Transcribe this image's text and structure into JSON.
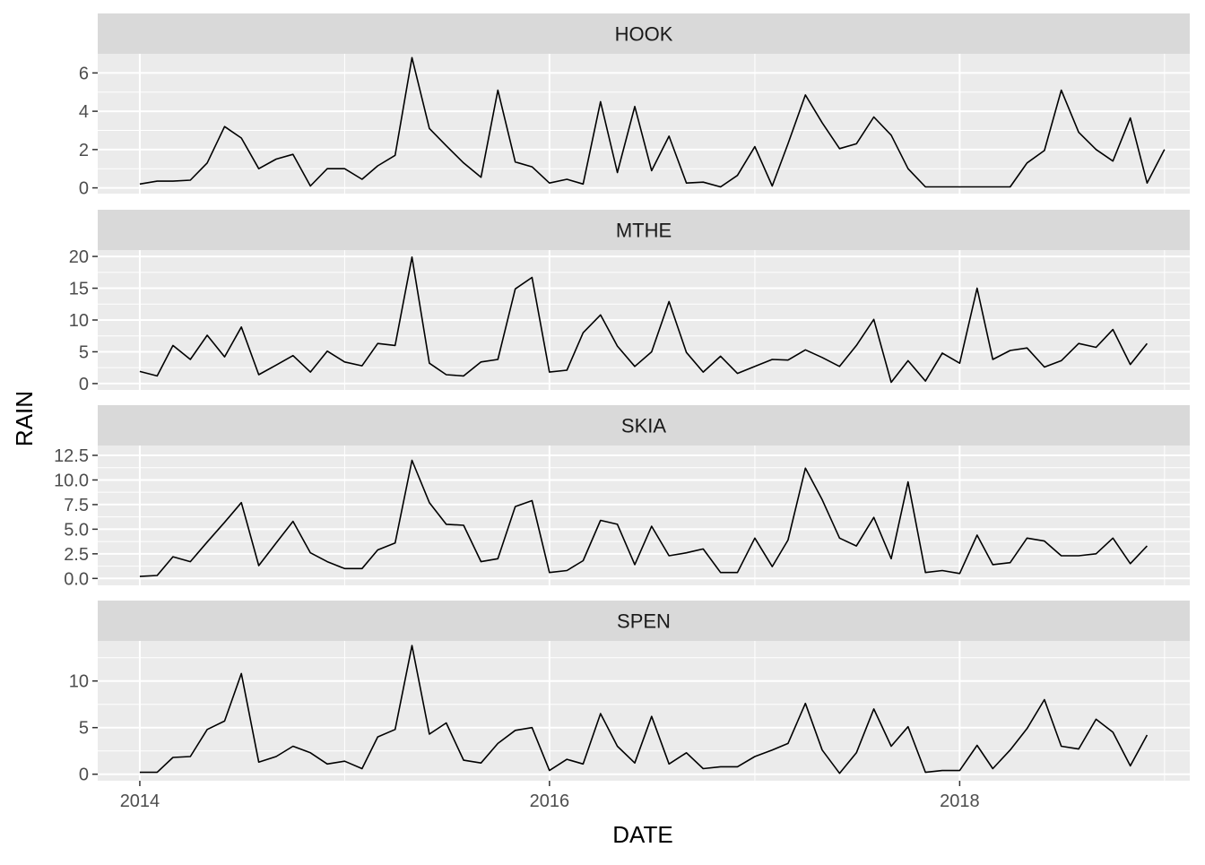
{
  "chart_data": {
    "type": "line",
    "xlabel": "DATE",
    "ylabel": "RAIN",
    "x_ticks": [
      "2014",
      "2016",
      "2018"
    ],
    "xlim": [
      "2013-10-18",
      "2019-02-15"
    ],
    "line_color": "#000000",
    "panel_background": "#ebebeb",
    "strip_background": "#d9d9d9",
    "grid": true,
    "facets": [
      {
        "strip": "HOOK",
        "ylim": [
          -0.3,
          7.0
        ],
        "y_ticks": [
          0,
          2,
          4,
          6
        ],
        "y_tick_labels": [
          "0",
          "2",
          "4",
          "6"
        ],
        "values": [
          0.2,
          0.35,
          0.35,
          0.4,
          1.3,
          3.2,
          2.6,
          1.0,
          1.5,
          1.75,
          0.1,
          1.0,
          1.0,
          0.45,
          1.15,
          1.7,
          6.8,
          3.1,
          2.2,
          1.3,
          0.55,
          5.1,
          1.35,
          1.1,
          0.25,
          0.45,
          0.2,
          4.5,
          0.8,
          4.25,
          0.9,
          2.7,
          0.25,
          0.3,
          0.05,
          0.65,
          2.15,
          0.1,
          2.3,
          4.85,
          3.4,
          2.05,
          2.3,
          3.7,
          2.75,
          1.0,
          0.05,
          0.05,
          0.05,
          0.05,
          0.05,
          0.05,
          1.3,
          1.95,
          5.1,
          2.9,
          2.0,
          1.4,
          3.65,
          0.25,
          2.0
        ]
      },
      {
        "strip": "MTHE",
        "ylim": [
          -1.0,
          21.0
        ],
        "y_ticks": [
          0,
          5,
          10,
          15,
          20
        ],
        "y_tick_labels": [
          "0",
          "5",
          "10",
          "15",
          "20"
        ],
        "values": [
          1.9,
          1.2,
          6.0,
          3.8,
          7.6,
          4.2,
          8.9,
          1.4,
          2.9,
          4.4,
          1.8,
          5.1,
          3.4,
          2.8,
          6.3,
          6.0,
          19.9,
          3.2,
          1.4,
          1.2,
          3.4,
          3.8,
          14.9,
          16.7,
          1.8,
          2.1,
          8.0,
          10.8,
          5.9,
          2.7,
          5.0,
          12.9,
          4.9,
          1.8,
          4.3,
          1.6,
          2.7,
          3.8,
          3.7,
          5.3,
          4.1,
          2.7,
          6.0,
          10.1,
          0.2,
          3.6,
          0.4,
          4.8,
          3.2,
          15.0,
          3.8,
          5.2,
          5.6,
          2.6,
          3.6,
          6.3,
          5.7,
          8.5,
          3.0,
          6.3
        ]
      },
      {
        "strip": "SKIA",
        "ylim": [
          -0.7,
          13.5
        ],
        "y_ticks": [
          0,
          2.5,
          5,
          7.5,
          10,
          12.5
        ],
        "y_tick_labels": [
          "0.0",
          "2.5",
          "5.0",
          "7.5",
          "10.0",
          "12.5"
        ],
        "values": [
          0.2,
          0.3,
          2.2,
          1.7,
          3.7,
          5.7,
          7.7,
          1.3,
          3.6,
          5.8,
          2.6,
          1.7,
          1.0,
          1.0,
          2.9,
          3.6,
          12.0,
          7.7,
          5.5,
          5.4,
          1.7,
          2.0,
          7.3,
          7.9,
          0.6,
          0.8,
          1.8,
          5.9,
          5.5,
          1.4,
          5.3,
          2.3,
          2.6,
          3.0,
          0.6,
          0.6,
          4.1,
          1.2,
          3.9,
          11.2,
          8.0,
          4.1,
          3.3,
          6.2,
          2.0,
          9.8,
          0.6,
          0.8,
          0.5,
          4.4,
          1.4,
          1.6,
          4.1,
          3.8,
          2.3,
          2.3,
          2.5,
          4.1,
          1.5,
          3.3
        ]
      },
      {
        "strip": "SPEN",
        "ylim": [
          -0.7,
          14.3
        ],
        "y_ticks": [
          0,
          5,
          10
        ],
        "y_tick_labels": [
          "0",
          "5",
          "10"
        ],
        "values": [
          0.2,
          0.2,
          1.8,
          1.9,
          4.8,
          5.7,
          10.8,
          1.3,
          1.9,
          3.0,
          2.3,
          1.1,
          1.4,
          0.6,
          4.0,
          4.8,
          13.8,
          4.3,
          5.5,
          1.5,
          1.2,
          3.3,
          4.7,
          5.0,
          0.4,
          1.6,
          1.1,
          6.5,
          3.0,
          1.2,
          6.2,
          1.1,
          2.3,
          0.6,
          0.8,
          0.8,
          1.9,
          2.6,
          3.3,
          7.6,
          2.6,
          0.1,
          2.3,
          7.0,
          3.0,
          5.1,
          0.2,
          0.4,
          0.4,
          3.1,
          0.6,
          2.6,
          4.9,
          8.0,
          3.0,
          2.7,
          5.9,
          4.5,
          0.9,
          4.2
        ]
      }
    ]
  }
}
